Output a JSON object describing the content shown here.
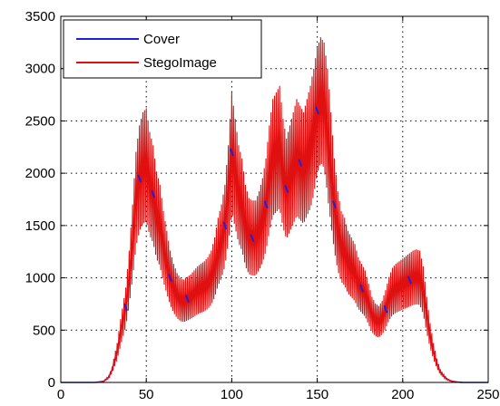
{
  "chart_data": {
    "type": "line",
    "title": "",
    "xlabel": "",
    "ylabel": "",
    "xlim": [
      0,
      250
    ],
    "ylim": [
      0,
      3500
    ],
    "xticks": [
      0,
      50,
      100,
      150,
      200,
      250
    ],
    "yticks": [
      0,
      500,
      1000,
      1500,
      2000,
      2500,
      3000,
      3500
    ],
    "grid": true,
    "legend_position": "top-left",
    "series": [
      {
        "name": "Cover",
        "color": "#1f1fe0",
        "x": [
          0,
          20,
          25,
          28,
          30,
          33,
          35,
          38,
          40,
          42,
          44,
          46,
          48,
          50,
          52,
          54,
          56,
          58,
          60,
          62,
          64,
          66,
          68,
          70,
          72,
          74,
          76,
          78,
          80,
          82,
          84,
          86,
          88,
          90,
          92,
          94,
          96,
          98,
          100,
          102,
          104,
          106,
          108,
          110,
          112,
          114,
          116,
          118,
          120,
          122,
          124,
          126,
          128,
          130,
          132,
          134,
          136,
          138,
          140,
          142,
          144,
          146,
          148,
          150,
          152,
          154,
          156,
          158,
          160,
          162,
          164,
          166,
          168,
          170,
          172,
          174,
          176,
          178,
          180,
          182,
          184,
          186,
          188,
          190,
          192,
          194,
          196,
          198,
          200,
          202,
          204,
          206,
          208,
          210,
          212,
          214,
          216,
          218,
          220,
          222,
          224,
          226,
          228,
          230,
          232,
          235,
          240,
          250
        ],
        "y": [
          0,
          0,
          10,
          50,
          120,
          300,
          480,
          720,
          1000,
          1350,
          1750,
          1950,
          2050,
          2080,
          1900,
          1800,
          1600,
          1500,
          1300,
          1150,
          1000,
          900,
          830,
          790,
          780,
          800,
          820,
          850,
          880,
          900,
          920,
          950,
          1000,
          1100,
          1250,
          1350,
          1500,
          1800,
          2200,
          2000,
          1800,
          1700,
          1500,
          1400,
          1380,
          1380,
          1450,
          1550,
          1700,
          1950,
          2150,
          2200,
          2250,
          2000,
          1850,
          1950,
          2050,
          2150,
          2100,
          2050,
          2150,
          2250,
          2400,
          2600,
          2700,
          2650,
          2400,
          2050,
          1700,
          1450,
          1300,
          1250,
          1150,
          1100,
          1050,
          950,
          900,
          850,
          750,
          650,
          600,
          580,
          620,
          700,
          800,
          870,
          900,
          920,
          940,
          960,
          980,
          1000,
          1010,
          1000,
          880,
          650,
          450,
          300,
          180,
          100,
          60,
          30,
          15,
          8,
          4,
          0,
          0,
          0
        ]
      },
      {
        "name": "StegoImage",
        "color": "#e01010"
      }
    ]
  }
}
